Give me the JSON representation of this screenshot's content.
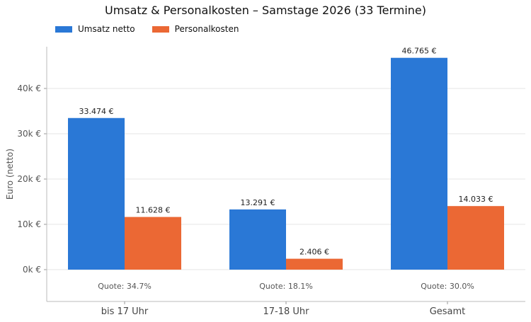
{
  "chart_data": {
    "type": "bar",
    "title": "Umsatz & Personalkosten – Samstage 2026 (33 Termine)",
    "ylabel": "Euro (netto)",
    "xlabel": "",
    "categories": [
      "bis 17 Uhr",
      "17-18 Uhr",
      "Gesamt"
    ],
    "series": [
      {
        "name": "Umsatz netto",
        "color": "#2a78d6",
        "values": [
          33474,
          13291,
          46765
        ],
        "labels": [
          "33.474 €",
          "13.291 €",
          "46.765 €"
        ]
      },
      {
        "name": "Personalkosten",
        "color": "#eb6834",
        "values": [
          11628,
          2406,
          14033
        ],
        "labels": [
          "11.628 €",
          "2.406 €",
          "14.033 €"
        ]
      }
    ],
    "annotations": [
      "Quote: 34.7%",
      "Quote: 18.1%",
      "Quote: 30.0%"
    ],
    "yticks": [
      0,
      10000,
      20000,
      30000,
      40000
    ],
    "ytick_labels": [
      "0k €",
      "10k €",
      "20k €",
      "30k €",
      "40k €"
    ],
    "ylim": [
      -7000,
      49000
    ],
    "grid": true,
    "legend_position": "top-left"
  }
}
